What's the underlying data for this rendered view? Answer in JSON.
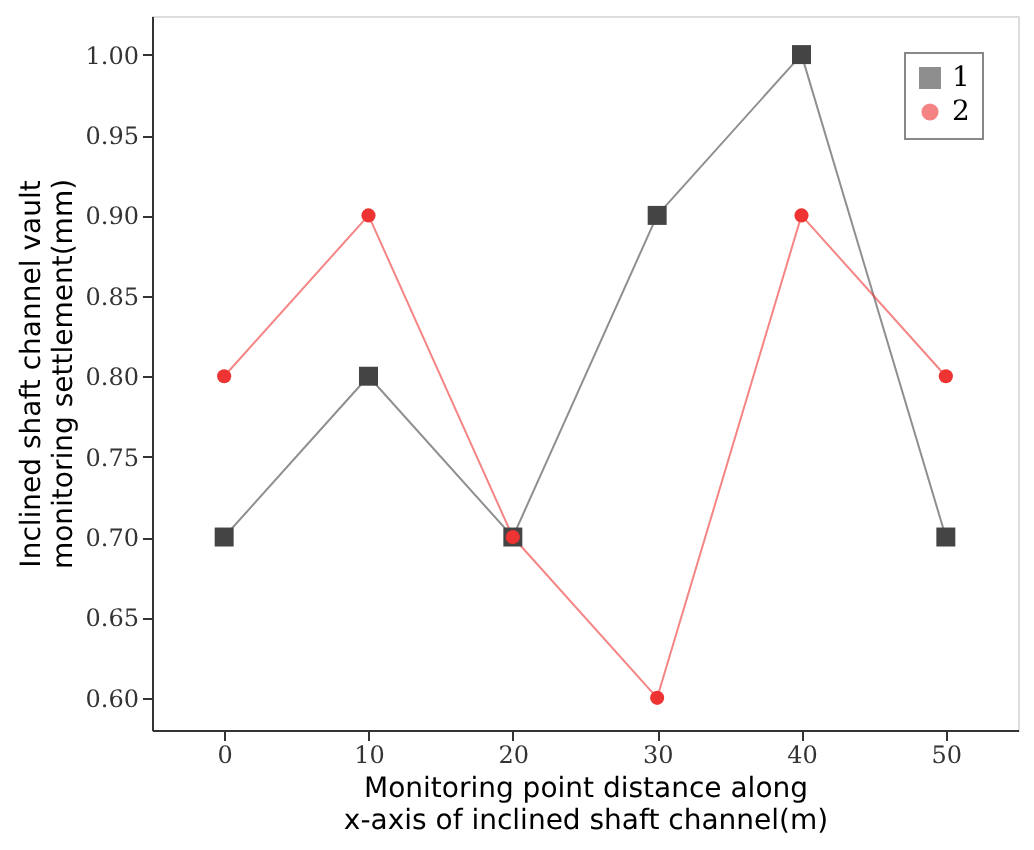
{
  "chart_data": {
    "type": "line",
    "xlabel": "Monitoring point distance along x-axis of inclined shaft channel(m)",
    "ylabel": "Inclined shaft channel vault monitoring settlement(mm)",
    "x": [
      0,
      10,
      20,
      30,
      40,
      50
    ],
    "series": [
      {
        "name": "1",
        "color": "#444444",
        "marker": "square",
        "values": [
          0.7,
          0.8,
          0.7,
          0.9,
          1.0,
          0.7
        ]
      },
      {
        "name": "2",
        "color": "#ee3333",
        "marker": "circle",
        "values": [
          0.8,
          0.9,
          0.7,
          0.6,
          0.9,
          0.8
        ]
      }
    ],
    "xlim": [
      -5,
      55
    ],
    "xticks": [
      0,
      10,
      20,
      30,
      40,
      50
    ],
    "ylim": [
      0.58,
      1.024
    ],
    "yticks": [
      {
        "value": 0.6,
        "label": "0.60"
      },
      {
        "value": 0.65,
        "label": "0.65"
      },
      {
        "value": 0.7,
        "label": "0.70"
      },
      {
        "value": 0.75,
        "label": "0.75"
      },
      {
        "value": 0.8,
        "label": "0.80"
      },
      {
        "value": 0.85,
        "label": "0.85"
      },
      {
        "value": 0.9,
        "label": "0.90"
      },
      {
        "value": 0.95,
        "label": "0.95"
      },
      {
        "value": 1.0,
        "label": "1.00"
      }
    ],
    "grid": false,
    "legend": "top right",
    "line_style": "solid"
  }
}
